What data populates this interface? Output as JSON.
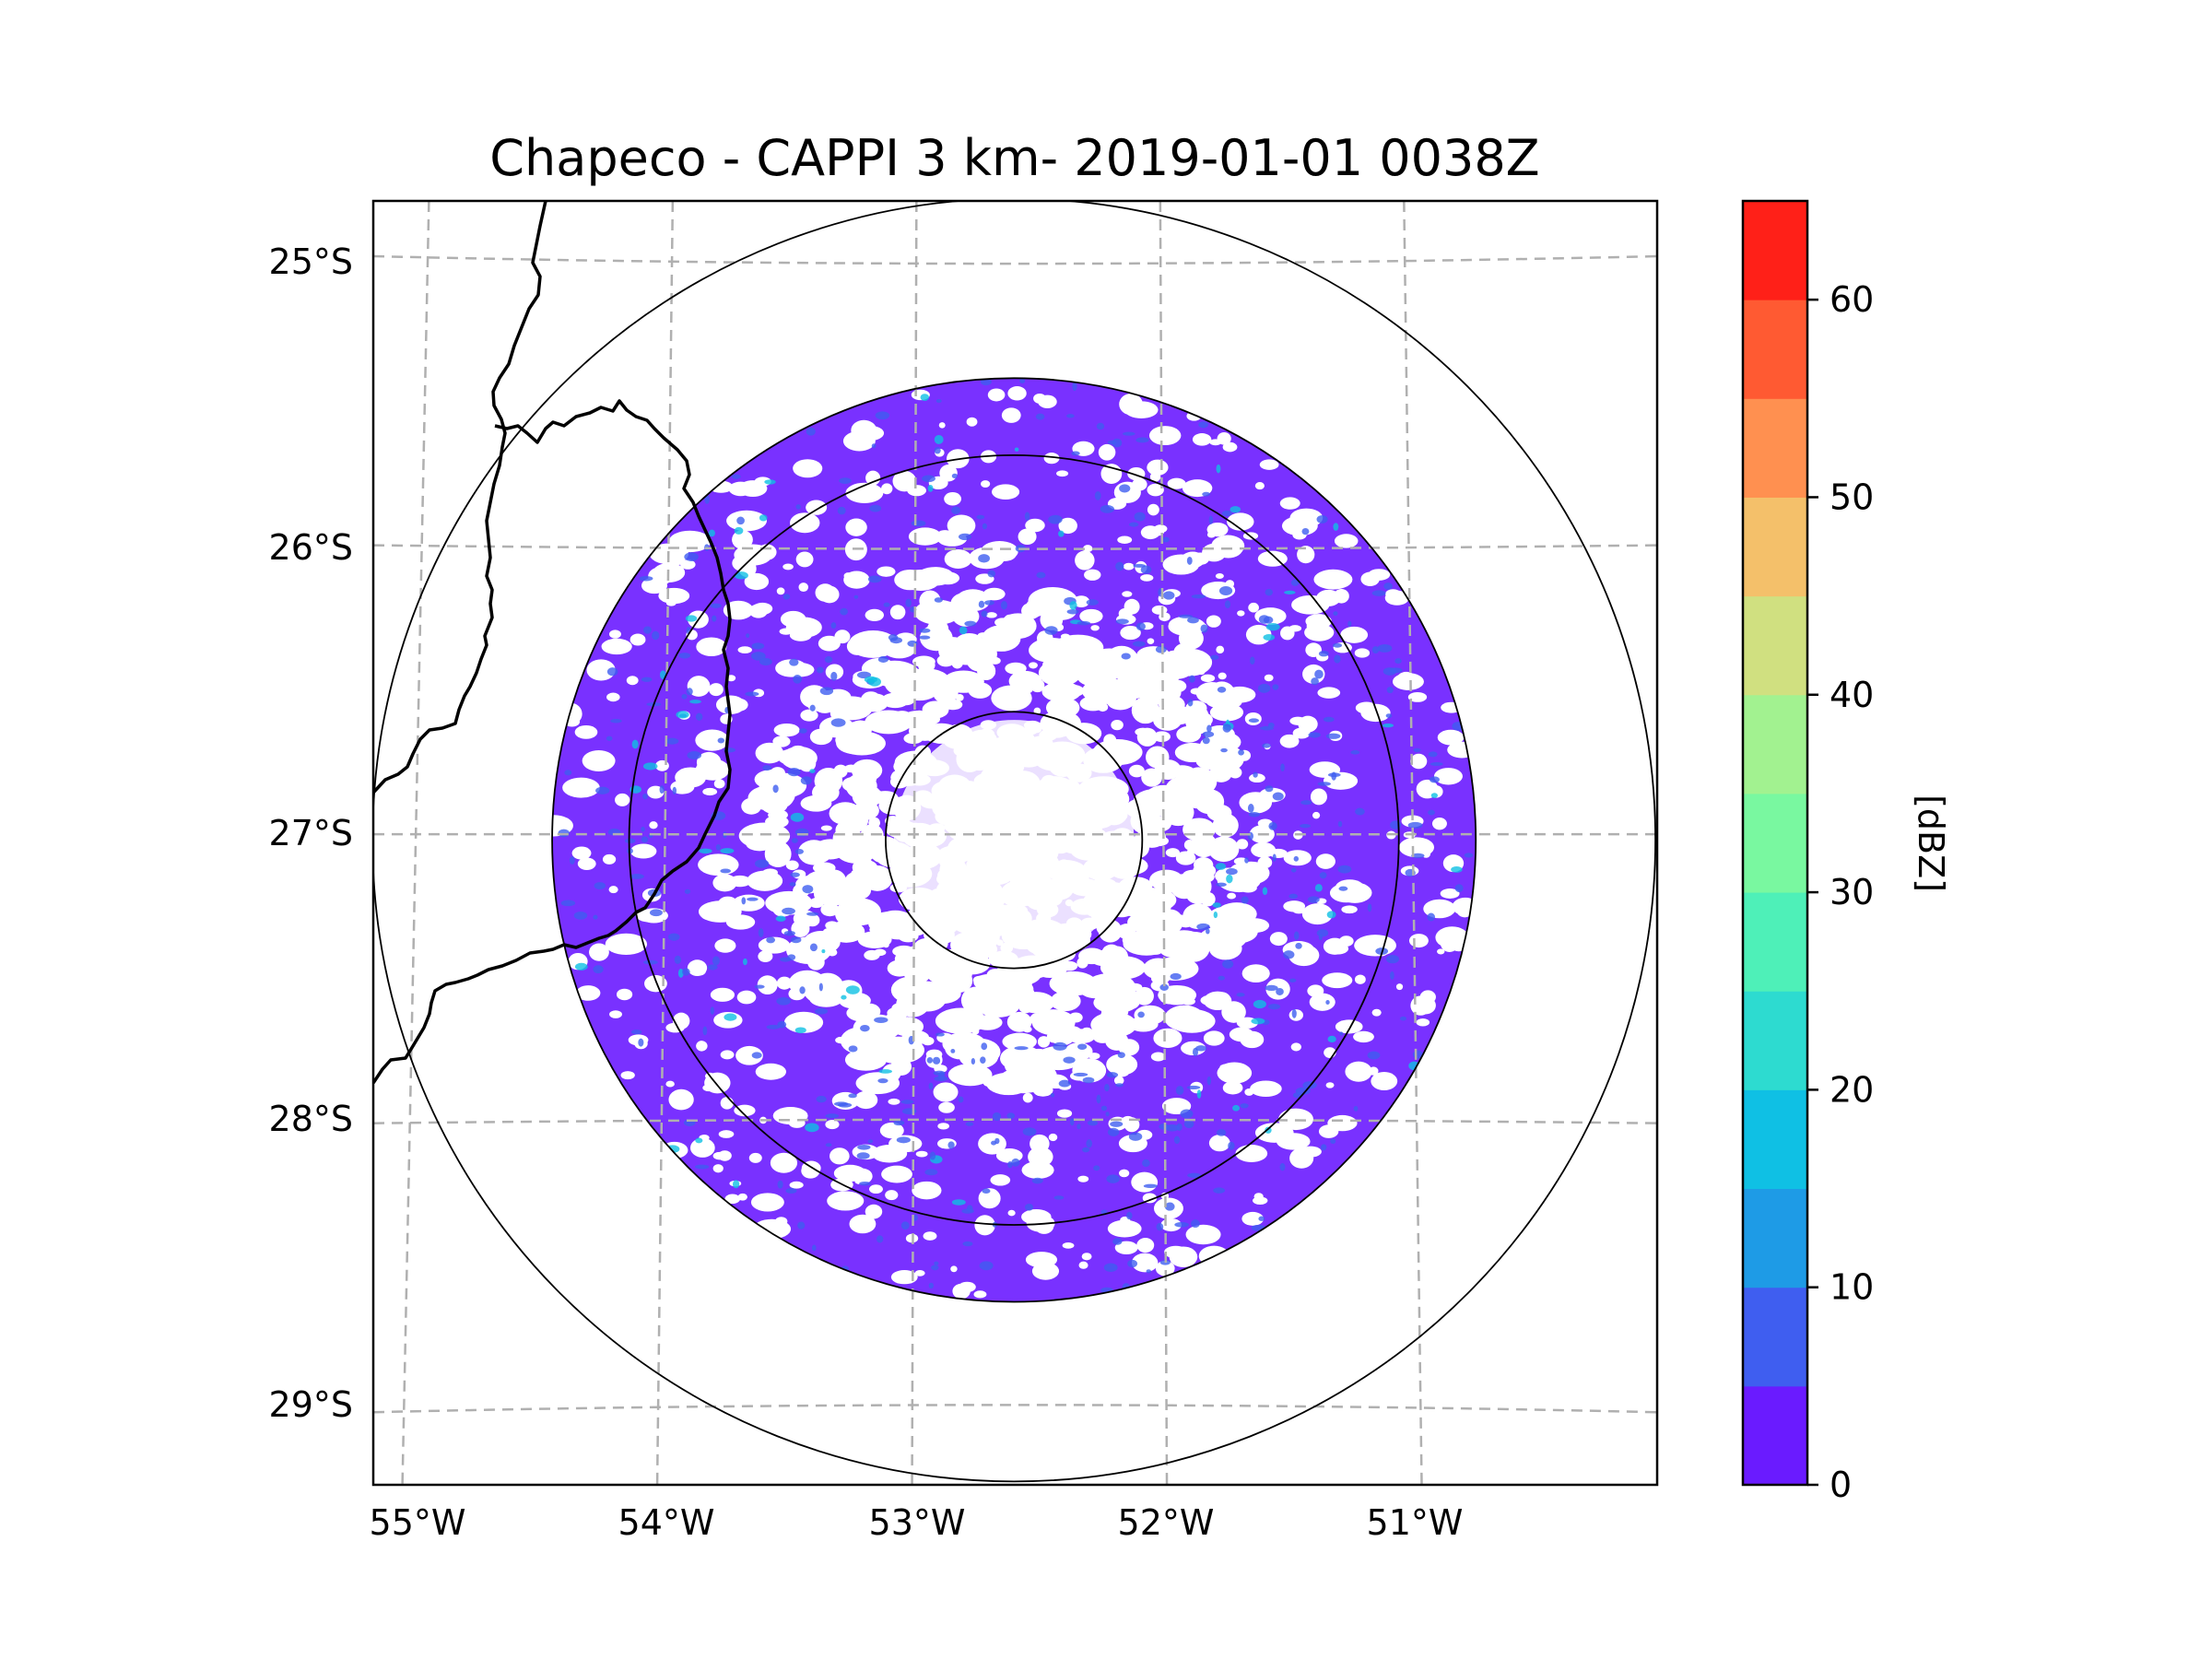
{
  "chart_data": {
    "type": "heatmap",
    "title": "Chapeco - CAPPI 3 km- 2019-01-01 0038Z",
    "x_ticks": [
      "55°W",
      "54°W",
      "53°W",
      "52°W",
      "51°W"
    ],
    "y_ticks": [
      "25°S",
      "26°S",
      "27°S",
      "28°S",
      "29°S"
    ],
    "lon_range": [
      -55.17,
      -50.02
    ],
    "lat_range": [
      -29.28,
      -24.78
    ],
    "radar_center": {
      "lon": -52.6,
      "lat": -27.02
    },
    "range_rings_km": [
      50,
      150,
      250
    ],
    "data_coverage_km": 180,
    "grid": true,
    "colorbar": {
      "label": "[dBZ]",
      "vmin": 0,
      "vmax": 65,
      "ticks": [
        "0",
        "10",
        "20",
        "30",
        "40",
        "50",
        "60"
      ],
      "levels": [
        0,
        5,
        10,
        15,
        20,
        25,
        30,
        35,
        40,
        45,
        50,
        55,
        60,
        65
      ],
      "colors": [
        "#6a1bff",
        "#3f5ef0",
        "#1e9be6",
        "#0fc0e4",
        "#2ddbd0",
        "#4ef0b8",
        "#79f8a0",
        "#a2f290",
        "#d0e080",
        "#f4c06a",
        "#ff9050",
        "#ff5a32",
        "#ff2018"
      ]
    }
  }
}
